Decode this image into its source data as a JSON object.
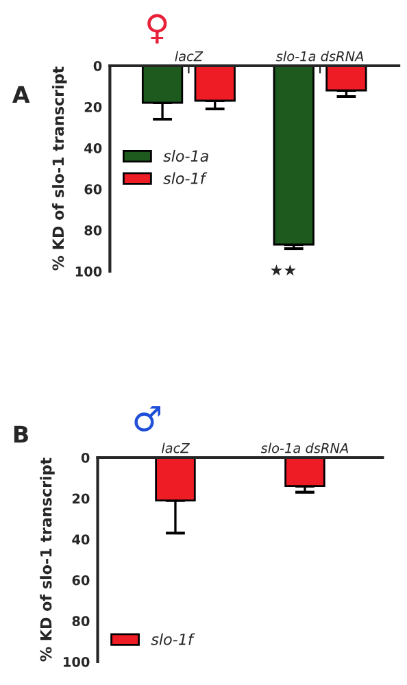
{
  "chart_data": [
    {
      "type": "bar",
      "title": "♀",
      "categories": [
        "lacZ",
        "slo-1a dsRNA"
      ],
      "ylabel": "% KD of slo-1 transcript",
      "ylim": [
        100,
        0
      ],
      "yticks": [
        0,
        20,
        40,
        60,
        80,
        100
      ],
      "grid": false,
      "legend": "left",
      "series": [
        {
          "name": "slo-1a",
          "color": "#1e5a1e",
          "values": [
            18,
            87
          ],
          "errors": [
            [
              18,
              26
            ],
            [
              87,
              89
            ]
          ]
        },
        {
          "name": "slo-1f",
          "color": "#ee1c24",
          "values": [
            17,
            12
          ],
          "errors": [
            [
              17,
              21
            ],
            [
              12,
              15
            ]
          ]
        }
      ],
      "annotations": [
        "A",
        "★★"
      ]
    },
    {
      "type": "bar",
      "title": "♂",
      "categories": [
        "lacZ",
        "slo-1a dsRNA"
      ],
      "ylabel": "% KD of slo-1 transcript",
      "ylim": [
        100,
        0
      ],
      "yticks": [
        0,
        20,
        40,
        60,
        80,
        100
      ],
      "grid": false,
      "legend": "bottom left",
      "series": [
        {
          "name": "slo-1f",
          "color": "#ee1c24",
          "values": [
            21,
            14
          ],
          "errors": [
            [
              21,
              37
            ],
            [
              14,
              17
            ]
          ]
        }
      ],
      "annotations": [
        "B"
      ]
    }
  ]
}
